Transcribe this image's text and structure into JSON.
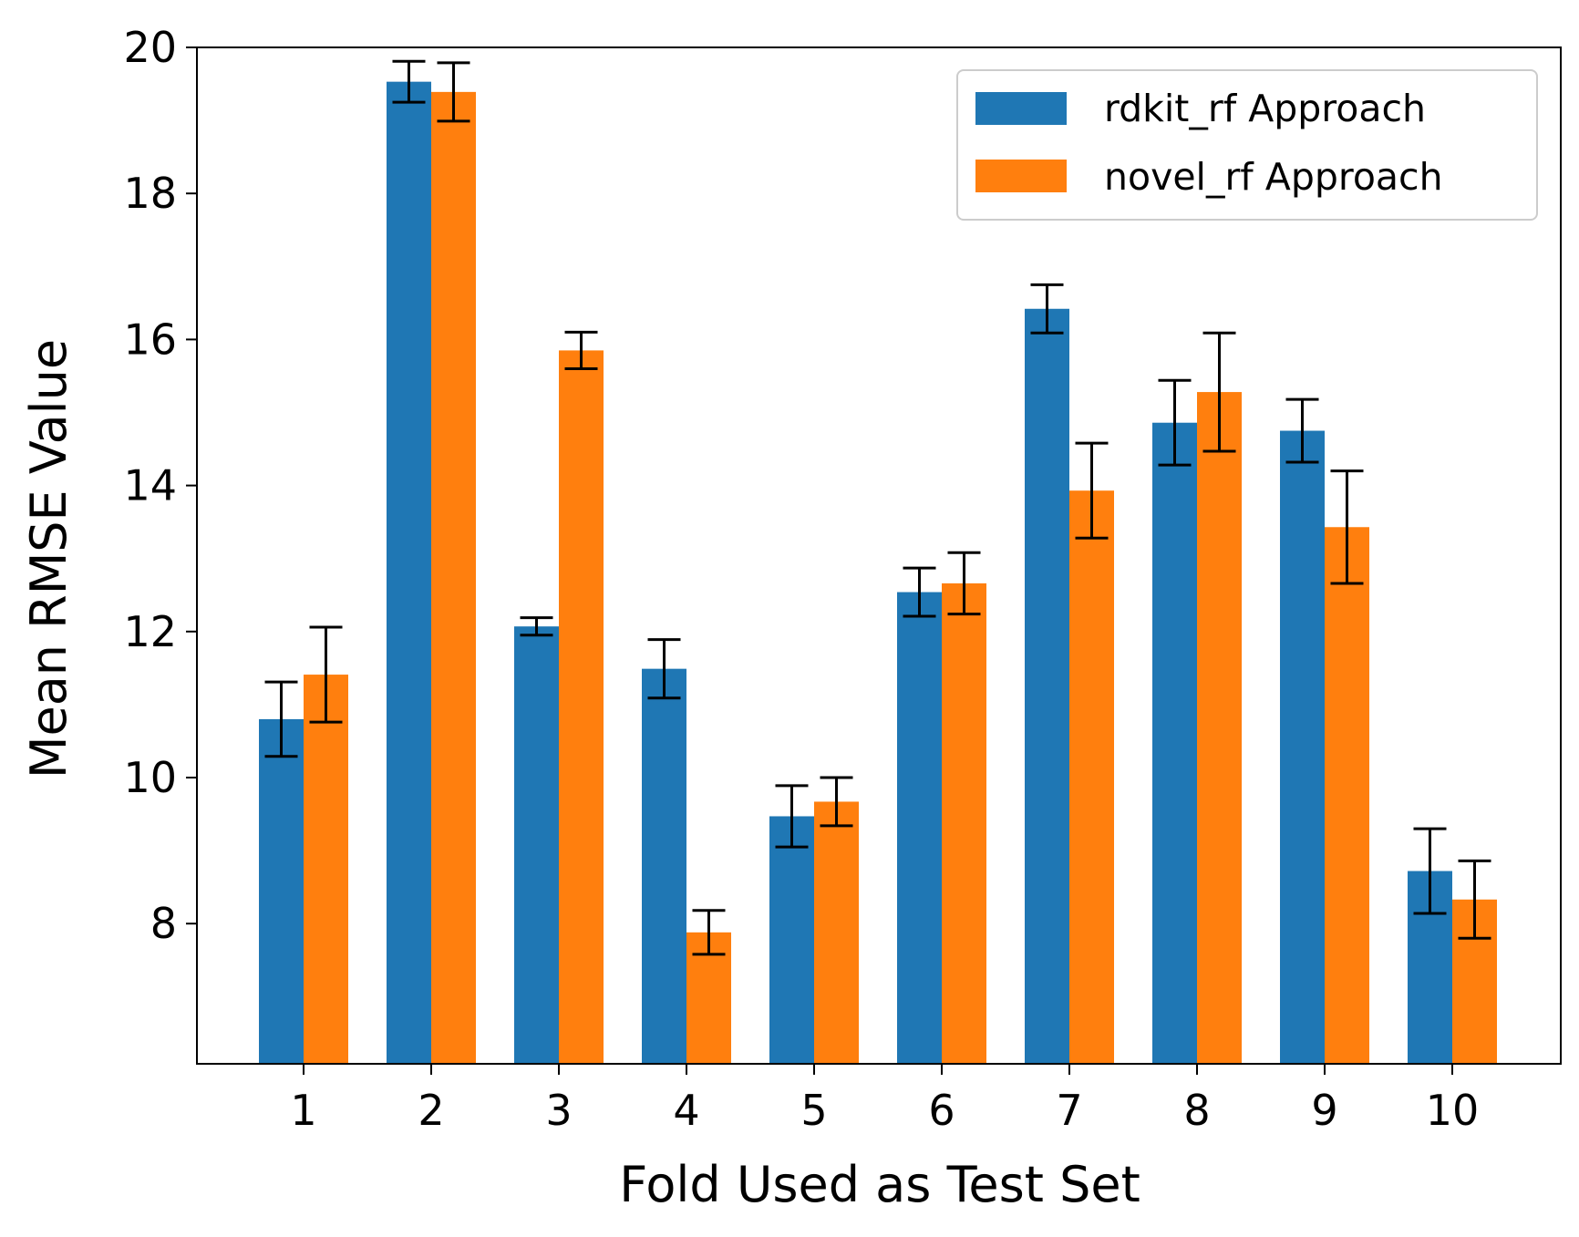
{
  "chart_data": {
    "type": "bar",
    "title": "",
    "xlabel": "Fold Used as Test Set",
    "ylabel": "Mean RMSE Value",
    "categories": [
      "1",
      "2",
      "3",
      "4",
      "5",
      "6",
      "7",
      "8",
      "9",
      "10"
    ],
    "ylim": [
      6.08,
      20.0
    ],
    "yticks": [
      8,
      10,
      12,
      14,
      16,
      18,
      20
    ],
    "grid": false,
    "legend_position": "top-right",
    "series": [
      {
        "name": "rdkit_rf Approach",
        "color": "#1f77b4",
        "values": [
          10.8,
          19.53,
          12.07,
          11.49,
          9.47,
          12.54,
          16.42,
          14.86,
          14.75,
          8.72
        ],
        "errors": [
          0.51,
          0.28,
          0.12,
          0.4,
          0.42,
          0.33,
          0.33,
          0.58,
          0.43,
          0.58
        ]
      },
      {
        "name": "novel_rf Approach",
        "color": "#ff7f0e",
        "values": [
          11.41,
          19.39,
          15.85,
          7.88,
          9.67,
          12.66,
          13.93,
          15.28,
          13.43,
          8.33
        ],
        "errors": [
          0.65,
          0.4,
          0.25,
          0.3,
          0.33,
          0.42,
          0.65,
          0.81,
          0.77,
          0.53
        ]
      }
    ]
  }
}
